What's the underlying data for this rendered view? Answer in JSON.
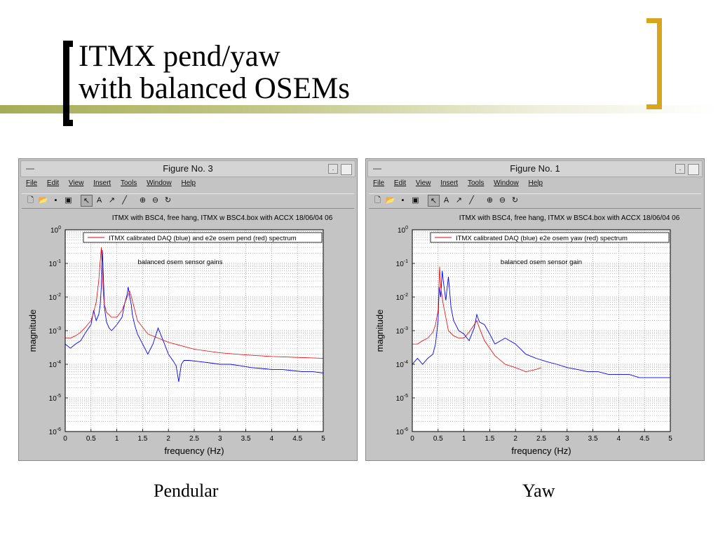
{
  "slide": {
    "title_line1": "ITMX pend/yaw",
    "title_line2": "with balanced OSEMs",
    "caption_left": "Pendular",
    "caption_right": "Yaw"
  },
  "windows": [
    {
      "title": "Figure No. 3",
      "menu": [
        "File",
        "Edit",
        "View",
        "Insert",
        "Tools",
        "Window",
        "Help"
      ],
      "plot_title": "ITMX with BSC4, free hang, ITMX w BSC4.box with ACCX 18/06/04 06",
      "legend": "ITMX calibrated DAQ (blue) and e2e osem pend (red) spectrum",
      "annotation": "balanced osem sensor gains"
    },
    {
      "title": "Figure No. 1",
      "menu": [
        "File",
        "Edit",
        "View",
        "Insert",
        "Tools",
        "Window",
        "Help"
      ],
      "plot_title": "ITMX with BSC4, free hang, ITMX w BSC4.box with ACCX 18/06/04 06",
      "legend": "ITMX calibrated DAQ (blue) e2e osem yaw (red) spectrum",
      "annotation": "balanced osem sensor gain"
    }
  ],
  "toolbar_icons": [
    "new-file-icon",
    "open-folder-icon",
    "save-icon",
    "print-icon",
    "arrow-icon",
    "text-icon",
    "line-arrow-icon",
    "line-icon",
    "zoom-in-icon",
    "zoom-out-icon",
    "rotate-icon"
  ],
  "colors": {
    "measured": "#0000ff",
    "model": "#ee0000",
    "title_rule": "#a6ac55",
    "bracket_right": "#d8a51f"
  },
  "chart_data": [
    {
      "type": "line",
      "title": "ITMX with BSC4, free hang, ITMX w BSC4.box with ACCX 18/06/04 06",
      "xlabel": "frequency (Hz)",
      "ylabel": "magnitude",
      "yscale": "log",
      "xlim": [
        0,
        5
      ],
      "ylim": [
        1e-06,
        1
      ],
      "xticks": [
        "0",
        "0.5",
        "1",
        "1.5",
        "2",
        "2.5",
        "3",
        "3.5",
        "4",
        "4.5",
        "5"
      ],
      "yticks": [
        "10^0",
        "10^-1",
        "10^-2",
        "10^-3",
        "10^-4",
        "10^-5",
        "10^-6"
      ],
      "grid": true,
      "legend_position": "top",
      "series": [
        {
          "name": "ITMX calibrated DAQ (blue)",
          "color": "#0000ff",
          "x": [
            0,
            0.1,
            0.2,
            0.3,
            0.4,
            0.5,
            0.55,
            0.6,
            0.65,
            0.68,
            0.7,
            0.72,
            0.74,
            0.76,
            0.78,
            0.8,
            0.85,
            0.9,
            1.0,
            1.1,
            1.15,
            1.2,
            1.22,
            1.25,
            1.28,
            1.3,
            1.35,
            1.4,
            1.5,
            1.6,
            1.7,
            1.8,
            1.9,
            2.0,
            2.1,
            2.15,
            2.2,
            2.25,
            2.3,
            2.4,
            2.6,
            2.8,
            3.0,
            3.2,
            3.4,
            3.6,
            3.8,
            4.0,
            4.2,
            4.4,
            4.6,
            4.8,
            5.0
          ],
          "y": [
            0.0004,
            0.0003,
            0.0004,
            0.0005,
            0.0009,
            0.0015,
            0.004,
            0.002,
            0.003,
            0.006,
            0.02,
            0.25,
            0.04,
            0.005,
            0.003,
            0.0018,
            0.0012,
            0.001,
            0.0015,
            0.0025,
            0.006,
            0.012,
            0.02,
            0.01,
            0.006,
            0.003,
            0.0014,
            0.0008,
            0.0004,
            0.0002,
            0.0004,
            0.0012,
            0.0005,
            0.0002,
            0.00012,
            9e-05,
            3e-05,
            0.0001,
            0.00013,
            0.00013,
            0.00012,
            0.00011,
            0.0001,
            0.0001,
            9e-05,
            8e-05,
            7.5e-05,
            7e-05,
            7e-05,
            6.5e-05,
            6e-05,
            6e-05,
            5.5e-05
          ]
        },
        {
          "name": "e2e osem pend (red)",
          "color": "#ee0000",
          "x": [
            0,
            0.1,
            0.2,
            0.3,
            0.4,
            0.5,
            0.55,
            0.6,
            0.65,
            0.7,
            0.72,
            0.74,
            0.76,
            0.8,
            0.9,
            1.0,
            1.1,
            1.2,
            1.25,
            1.3,
            1.4,
            1.6,
            2.0,
            2.5,
            3.0,
            3.5,
            4.0,
            4.5,
            5.0
          ],
          "y": [
            0.0006,
            0.0006,
            0.0007,
            0.0009,
            0.0013,
            0.002,
            0.0035,
            0.007,
            0.03,
            0.3,
            0.05,
            0.012,
            0.006,
            0.0035,
            0.0025,
            0.0025,
            0.004,
            0.01,
            0.015,
            0.008,
            0.002,
            0.0008,
            0.00045,
            0.00028,
            0.00022,
            0.00019,
            0.00017,
            0.00016,
            0.00015
          ]
        }
      ]
    },
    {
      "type": "line",
      "title": "ITMX with BSC4, free hang, ITMX w BSC4.box with ACCX 18/06/04 06",
      "xlabel": "frequency (Hz)",
      "ylabel": "magnitude",
      "yscale": "log",
      "xlim": [
        0,
        5
      ],
      "ylim": [
        1e-06,
        1
      ],
      "xticks": [
        "0",
        "0.5",
        "1",
        "1.5",
        "2",
        "2.5",
        "3",
        "3.5",
        "4",
        "4.5",
        "5"
      ],
      "yticks": [
        "10^0",
        "10^-1",
        "10^-2",
        "10^-3",
        "10^-4",
        "10^-5",
        "10^-6"
      ],
      "grid": true,
      "legend_position": "top",
      "series": [
        {
          "name": "ITMX calibrated DAQ (blue)",
          "color": "#0000ff",
          "x": [
            0,
            0.1,
            0.2,
            0.3,
            0.4,
            0.45,
            0.5,
            0.52,
            0.55,
            0.58,
            0.6,
            0.65,
            0.7,
            0.75,
            0.8,
            0.9,
            1.0,
            1.1,
            1.2,
            1.25,
            1.3,
            1.4,
            1.5,
            1.6,
            1.8,
            2.0,
            2.2,
            2.4,
            2.6,
            2.8,
            3.0,
            3.2,
            3.4,
            3.6,
            3.8,
            4.0,
            4.2,
            4.4,
            4.6,
            4.8,
            5.0
          ],
          "y": [
            0.0001,
            0.00015,
            0.0001,
            0.00015,
            0.0002,
            0.0004,
            0.002,
            0.02,
            0.01,
            0.06,
            0.03,
            0.008,
            0.04,
            0.005,
            0.002,
            0.001,
            0.0008,
            0.0005,
            0.0012,
            0.003,
            0.0018,
            0.0015,
            0.0008,
            0.0004,
            0.0006,
            0.0004,
            0.0002,
            0.00015,
            0.00012,
            0.0001,
            8e-05,
            7e-05,
            6e-05,
            6e-05,
            5e-05,
            5e-05,
            5e-05,
            4e-05,
            4e-05,
            4e-05,
            4e-05
          ]
        },
        {
          "name": "e2e osem yaw (red)",
          "color": "#ee0000",
          "x": [
            0,
            0.1,
            0.2,
            0.3,
            0.4,
            0.45,
            0.5,
            0.53,
            0.55,
            0.6,
            0.7,
            0.8,
            0.9,
            1.0,
            1.1,
            1.2,
            1.25,
            1.3,
            1.4,
            1.6,
            1.8,
            2.0,
            2.2,
            2.4,
            2.5
          ],
          "y": [
            0.0004,
            0.0004,
            0.0005,
            0.0006,
            0.0009,
            0.0015,
            0.004,
            0.08,
            0.02,
            0.006,
            0.001,
            0.0007,
            0.0006,
            0.0006,
            0.0009,
            0.0015,
            0.002,
            0.0012,
            0.0005,
            0.00018,
            0.0001,
            8e-05,
            6e-05,
            7e-05,
            8e-05
          ]
        }
      ]
    }
  ]
}
